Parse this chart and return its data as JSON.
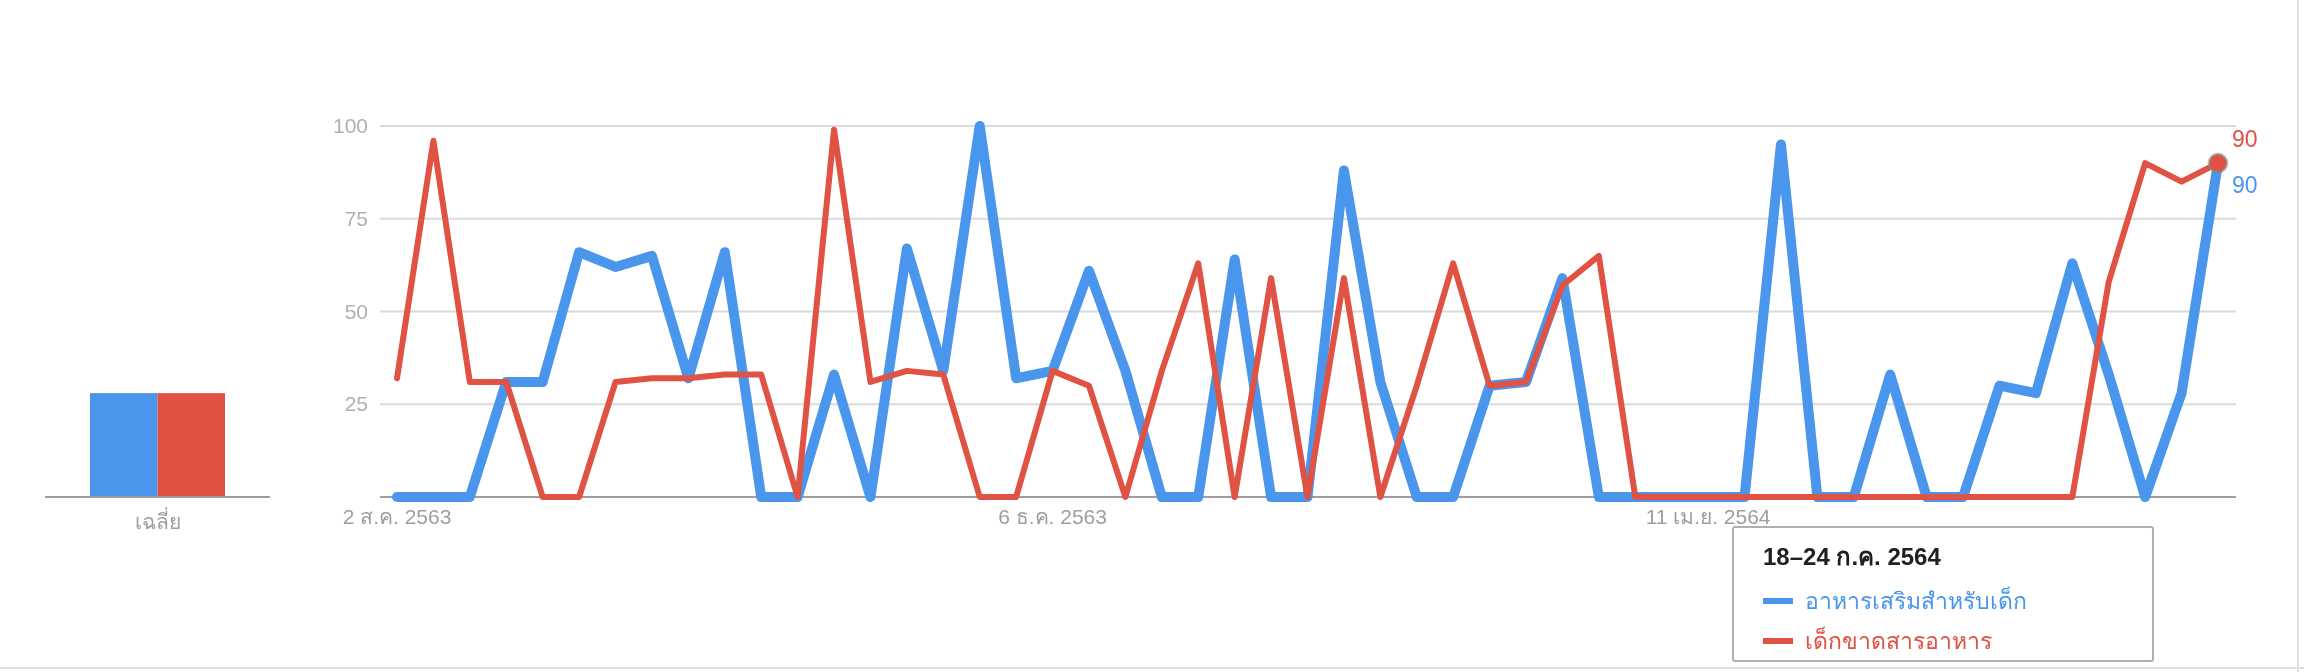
{
  "chart_data": [
    {
      "type": "bar",
      "categories": [
        "เฉลี่ย"
      ],
      "ylim": [
        0,
        100
      ],
      "tick_labels": "x",
      "series": [
        {
          "color": "#4a96ec",
          "values": [
            28
          ]
        },
        {
          "color": "#e05243",
          "values": [
            28
          ]
        }
      ]
    },
    {
      "type": "line",
      "ylim": [
        0,
        100
      ],
      "yticks": [
        25,
        50,
        75,
        100
      ],
      "grid": "y",
      "legend": "bottom",
      "legend_title": "18–24 ก.ค. 2564",
      "categories": [
        "2 ส.ค. 2563",
        null,
        null,
        null,
        null,
        null,
        null,
        null,
        null,
        null,
        null,
        null,
        null,
        null,
        null,
        null,
        null,
        null,
        "6 ธ.ค. 2563",
        null,
        null,
        null,
        null,
        null,
        null,
        null,
        null,
        null,
        null,
        null,
        null,
        null,
        null,
        null,
        null,
        null,
        "11 เม.ย. 2564",
        null,
        null,
        null,
        null,
        null,
        null,
        null,
        null,
        null,
        null,
        null,
        null,
        null,
        null
      ],
      "series": [
        {
          "name": "อาหารเสริมสำหรับเด็ก",
          "color": "#4a96ec",
          "values": [
            0,
            0,
            0,
            31,
            31,
            66,
            62,
            65,
            32,
            66,
            0,
            0,
            33,
            0,
            67,
            34,
            100,
            32,
            34,
            61,
            34,
            0,
            0,
            64,
            0,
            0,
            88,
            31,
            0,
            0,
            30,
            31,
            59,
            0,
            0,
            0,
            0,
            0,
            95,
            0,
            0,
            33,
            0,
            0,
            30,
            28,
            63,
            33,
            0,
            28,
            90
          ],
          "value_labels": [
            null,
            null,
            null,
            null,
            null,
            null,
            null,
            null,
            null,
            null,
            null,
            null,
            null,
            null,
            null,
            null,
            null,
            null,
            null,
            null,
            null,
            null,
            null,
            null,
            null,
            null,
            null,
            null,
            null,
            null,
            null,
            null,
            null,
            null,
            null,
            null,
            null,
            null,
            null,
            null,
            null,
            null,
            null,
            null,
            null,
            null,
            null,
            null,
            null,
            null,
            "90"
          ]
        },
        {
          "name": "เด็กขาดสารอาหาร",
          "color": "#e05243",
          "values": [
            32,
            96,
            31,
            31,
            0,
            0,
            31,
            32,
            32,
            33,
            33,
            0,
            99,
            31,
            34,
            33,
            0,
            0,
            34,
            30,
            0,
            34,
            63,
            0,
            59,
            0,
            59,
            0,
            30,
            63,
            30,
            31,
            57,
            65,
            0,
            0,
            0,
            0,
            0,
            0,
            0,
            0,
            0,
            0,
            0,
            0,
            0,
            58,
            90,
            85,
            90
          ],
          "value_labels": [
            null,
            null,
            null,
            null,
            null,
            null,
            null,
            null,
            null,
            null,
            null,
            null,
            null,
            null,
            null,
            null,
            null,
            null,
            null,
            null,
            null,
            null,
            null,
            null,
            null,
            null,
            null,
            null,
            null,
            null,
            null,
            null,
            null,
            null,
            null,
            null,
            null,
            null,
            null,
            null,
            null,
            null,
            null,
            null,
            null,
            null,
            null,
            null,
            null,
            null,
            "90"
          ]
        }
      ]
    }
  ]
}
